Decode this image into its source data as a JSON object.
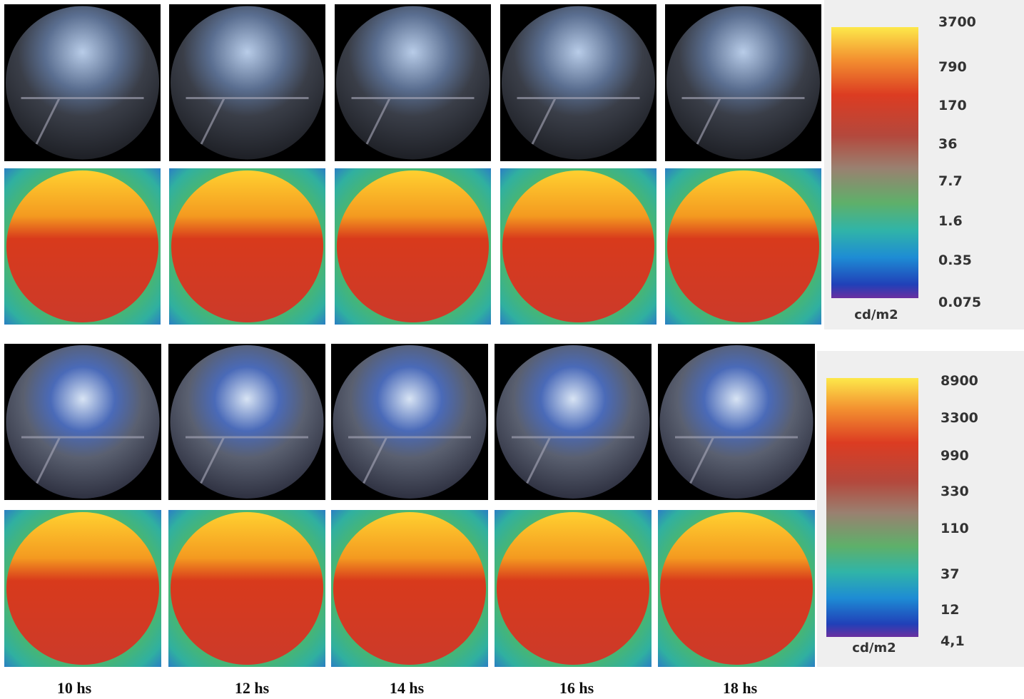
{
  "top_scale": {
    "labels": [
      "3700",
      "790",
      "170",
      "36",
      "7.7",
      "1.6",
      "0.35",
      "0.075"
    ],
    "unit": "cd/m2"
  },
  "bottom_scale": {
    "labels": [
      "8900",
      "3300",
      "990",
      "330",
      "110",
      "37",
      "12",
      "4,1"
    ],
    "unit": "cd/m2"
  },
  "times": [
    "10 hs",
    "12 hs",
    "14 hs",
    "16 hs",
    "18 hs"
  ]
}
